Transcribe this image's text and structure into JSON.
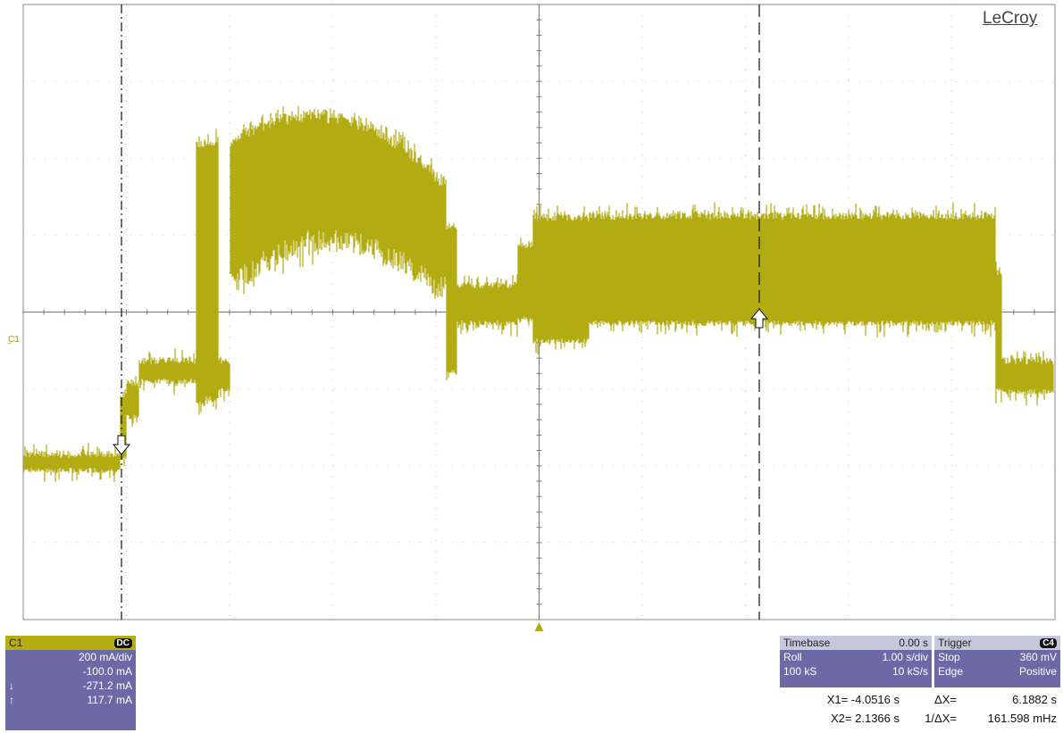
{
  "brand": "LeCroy",
  "channel_marker": "C1",
  "c1_box": {
    "label": "C1",
    "coupling": "DC",
    "scale": "200 mA/div",
    "offset": "-100.0 mA",
    "cursor1": "-271.2 mA",
    "cursor2": "117.7 mA",
    "cursor1_symbol": "↓",
    "cursor2_symbol": "↑"
  },
  "timebase": {
    "label": "Timebase",
    "delay": "0.00 s",
    "mode": "Roll",
    "tdiv": "1.00 s/div",
    "samples": "100 kS",
    "rate": "10 kS/s"
  },
  "trigger": {
    "label": "Trigger",
    "source": "C4",
    "state": "Stop",
    "level": "360 mV",
    "type": "Edge",
    "slope": "Positive"
  },
  "measurements": {
    "x1": "X1=  -4.0516 s",
    "dx_label": "ΔX=",
    "dx": "6.1882 s",
    "x2": "X2=   2.1366 s",
    "inv_dx_label": "1/ΔX=",
    "inv_dx": "161.598 mHz"
  },
  "colors": {
    "trace": "#b3ab12",
    "grid": "#9a9a9a",
    "panel": "#6b6aa6",
    "accent": "#b6ad15"
  }
}
